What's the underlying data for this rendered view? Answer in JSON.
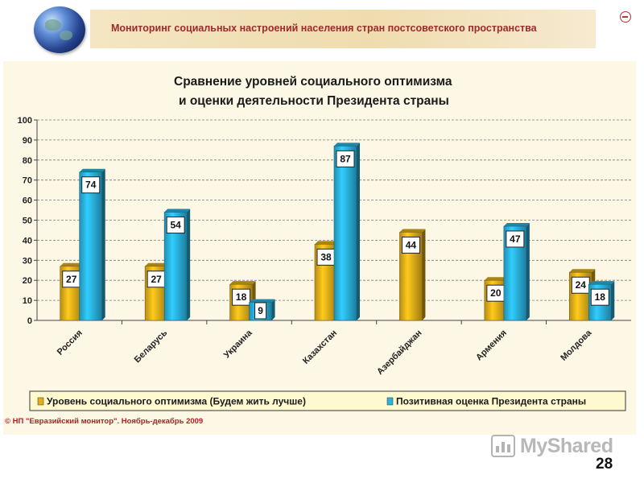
{
  "header": {
    "title": "Мониторинг социальных настроений населения стран постсоветского пространства"
  },
  "icons": {
    "logo": "globe-icon",
    "corner": "minus-circle-icon",
    "watermark": "presentation-board-icon"
  },
  "chart_data": {
    "type": "bar",
    "title_lines": [
      "Сравнение уровней социального оптимизма",
      "и оценки деятельности Президента страны"
    ],
    "categories": [
      "Россия",
      "Беларусь",
      "Украина",
      "Казахстан",
      "Азербайджан",
      "Армения",
      "Молдова"
    ],
    "series": [
      {
        "name": "Уровень социального оптимизма (Будем жить лучше)",
        "color": "#e3b019",
        "values": [
          27,
          27,
          18,
          38,
          44,
          20,
          24
        ]
      },
      {
        "name": "Позитивная оценка Президента страны",
        "color": "#2bb3e0",
        "values": [
          74,
          54,
          9,
          87,
          null,
          47,
          18
        ]
      }
    ],
    "ylim": [
      0,
      100
    ],
    "yticks": [
      0,
      10,
      20,
      30,
      40,
      50,
      60,
      70,
      80,
      90,
      100
    ],
    "grid": true,
    "legend": "bottom",
    "xlabel": "",
    "ylabel": ""
  },
  "footer": {
    "copyright": "© НП \"Евразийский монитор\". Ноябрь-декабрь 2009",
    "watermark": "MyShared",
    "page_number": "28"
  }
}
